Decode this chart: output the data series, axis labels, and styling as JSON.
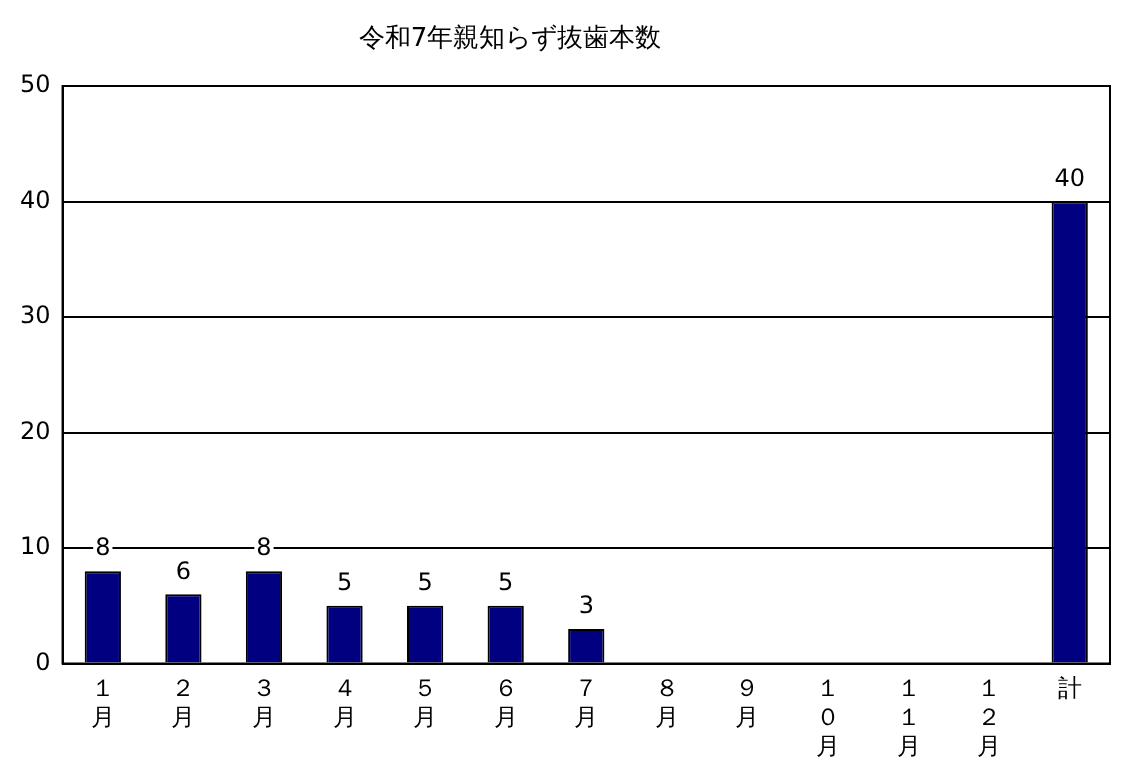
{
  "chart_data": {
    "type": "bar",
    "title": "令和7年親知らず抜歯本数",
    "categories": [
      "１月",
      "２月",
      "３月",
      "４月",
      "５月",
      "６月",
      "７月",
      "８月",
      "９月",
      "１０月",
      "１１月",
      "１２月",
      "計"
    ],
    "values": [
      8,
      6,
      8,
      5,
      5,
      5,
      3,
      null,
      null,
      null,
      null,
      null,
      40
    ],
    "color": "#000080",
    "ylim": [
      0,
      50
    ],
    "yticks": [
      0,
      10,
      20,
      30,
      40,
      50
    ],
    "grid": "y",
    "data_labels": true,
    "legend": false
  }
}
